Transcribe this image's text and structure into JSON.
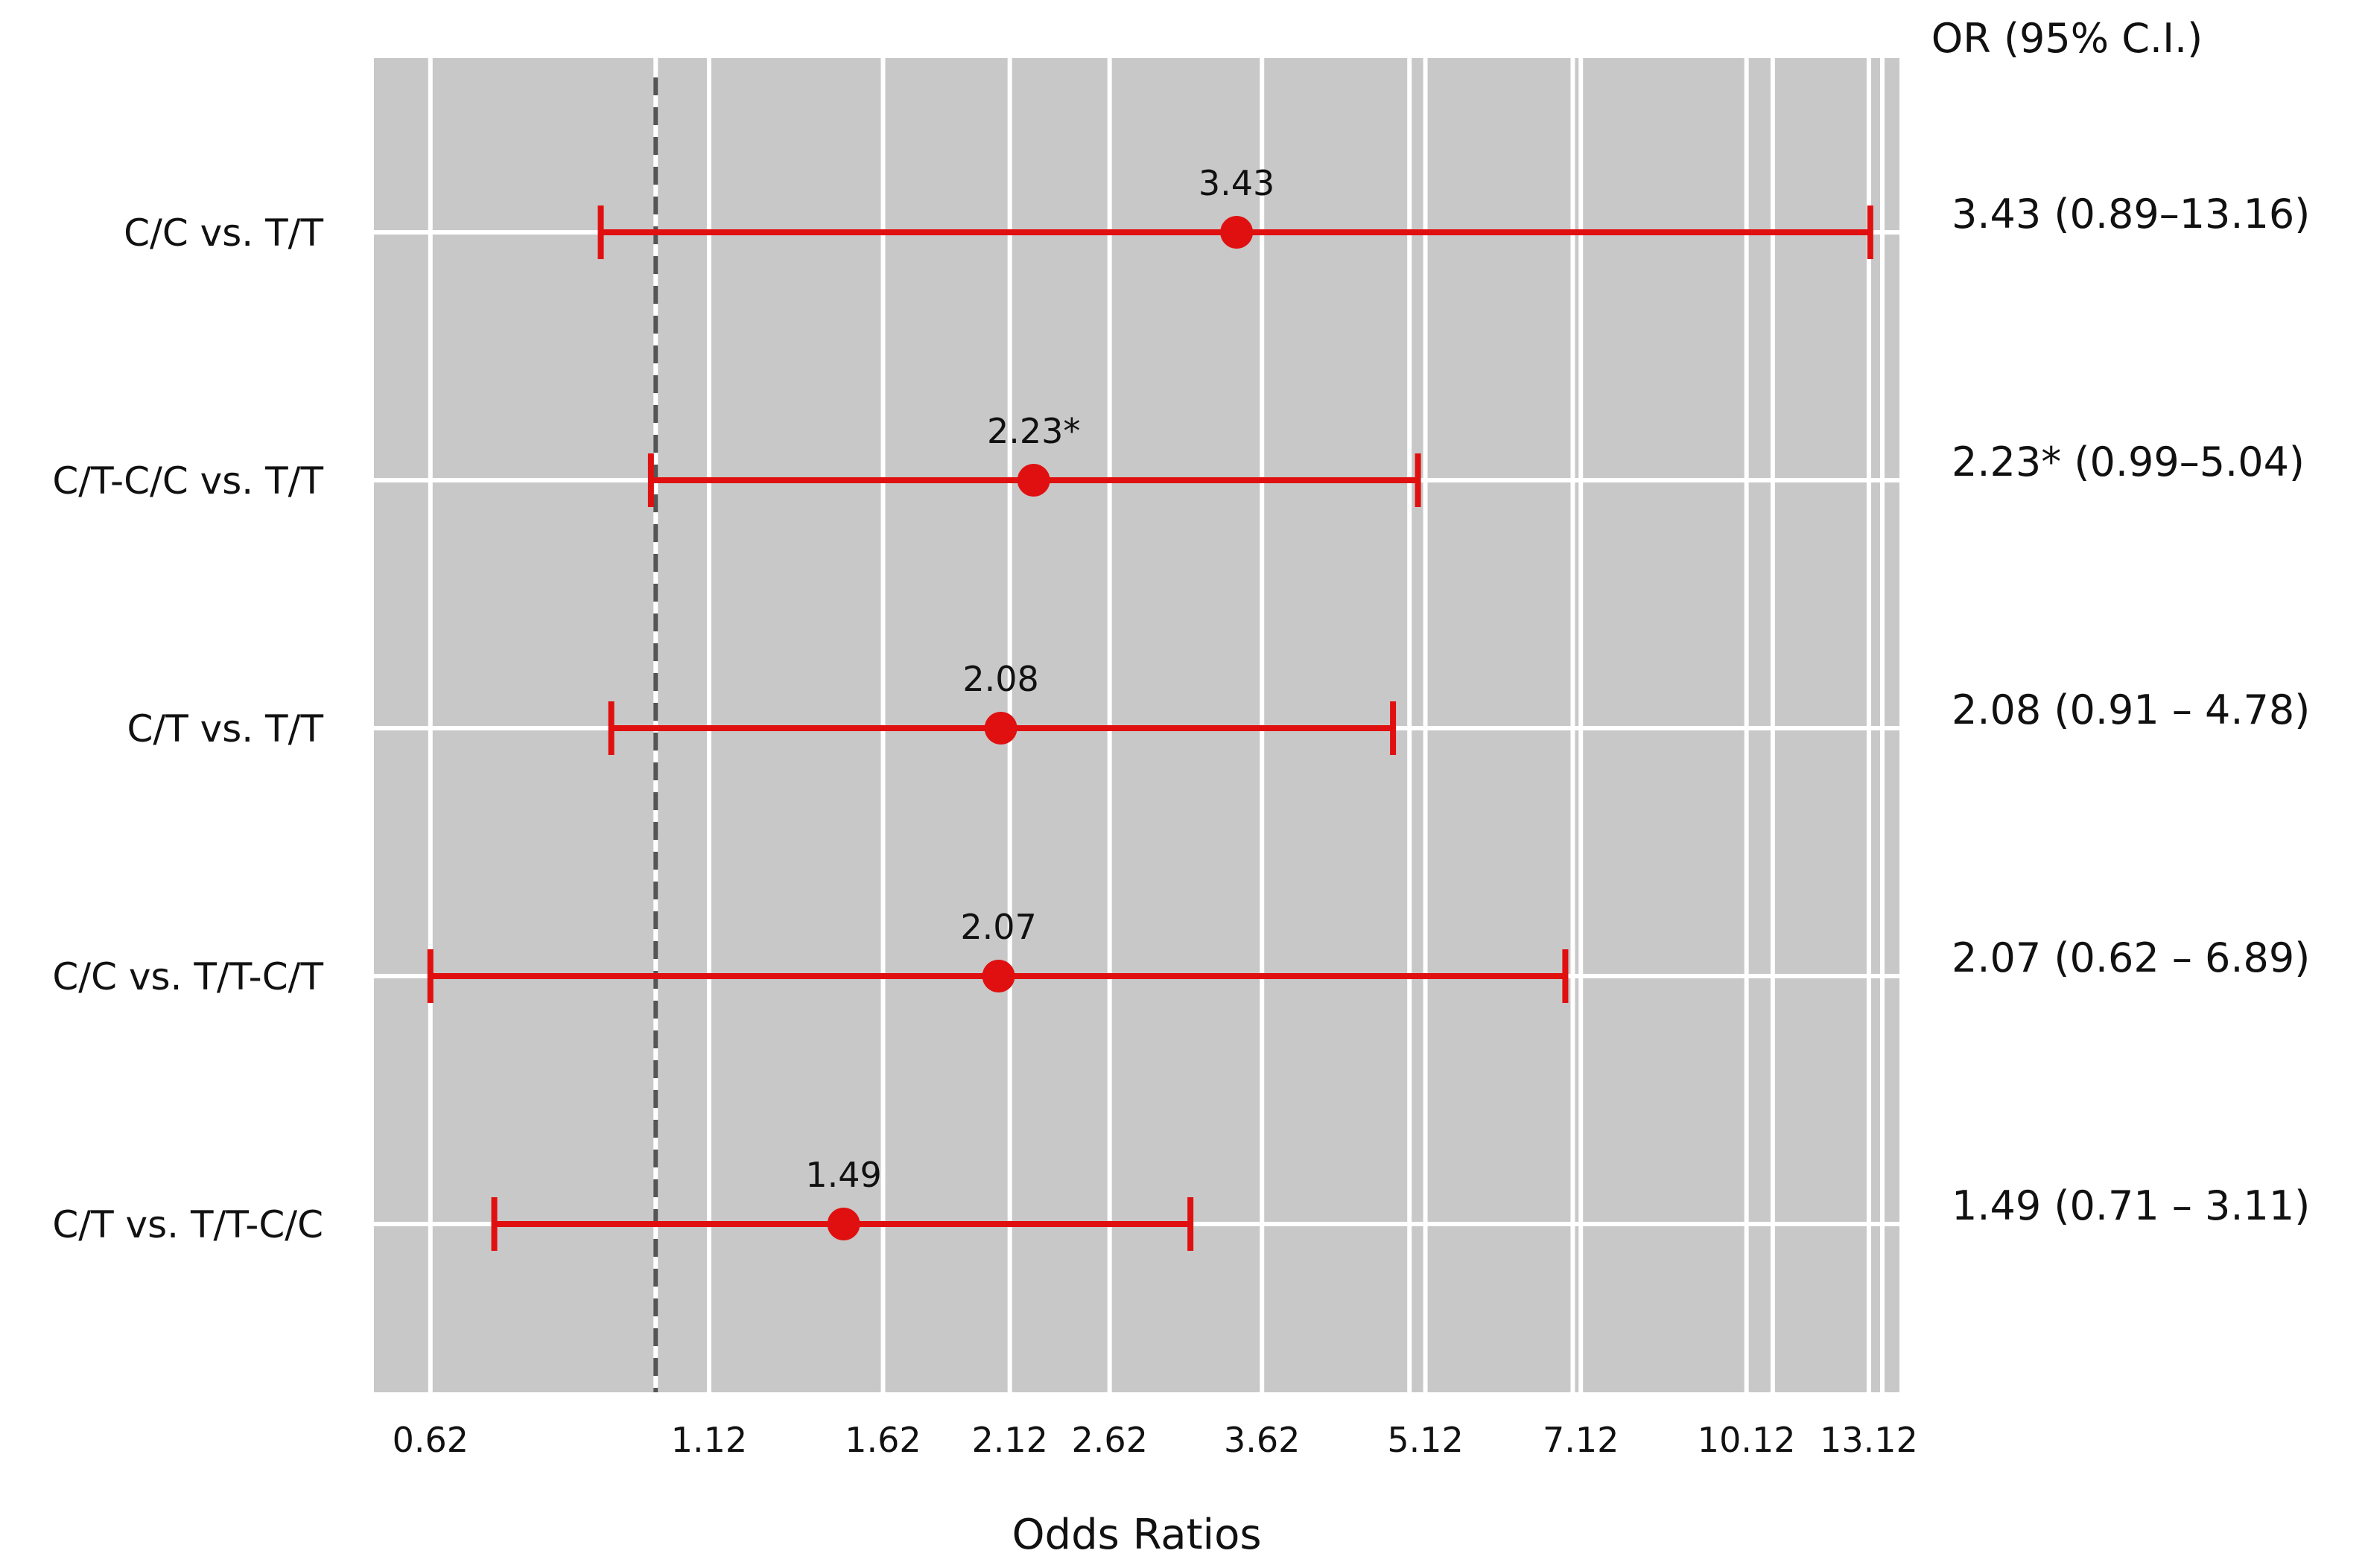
{
  "chart_data": {
    "type": "forest",
    "title": "",
    "xlabel": "Odds Ratios",
    "ylabel": "",
    "x_scale": "log",
    "xlim": [
      0.55,
      14.0
    ],
    "x_ticks": [
      0.62,
      1.12,
      1.62,
      2.12,
      2.62,
      3.62,
      5.12,
      7.12,
      10.12,
      13.12
    ],
    "x_tick_labels": [
      "0.62",
      "1.12",
      "1.62",
      "2.12",
      "2.62",
      "3.62",
      "5.12",
      "7.12",
      "10.12",
      "13.12"
    ],
    "extra_gridlines": [
      1.0,
      4.95,
      7.0,
      10.7,
      13.5
    ],
    "reference_line": 1.0,
    "grid": true,
    "background_color": "#c8c8c8",
    "marker_color": "#e01010",
    "right_column_header": "OR (95% C.I.)",
    "rows": [
      {
        "label": "C/C vs. T/T",
        "or": 3.43,
        "lower": 0.89,
        "upper": 13.16,
        "point_label": "3.43",
        "ci_text": "3.43 (0.89–13.16)"
      },
      {
        "label": "C/T-C/C vs. T/T",
        "or": 2.23,
        "lower": 0.99,
        "upper": 5.04,
        "point_label": "2.23*",
        "ci_text": "2.23* (0.99–5.04)"
      },
      {
        "label": "C/T vs. T/T",
        "or": 2.08,
        "lower": 0.91,
        "upper": 4.78,
        "point_label": "2.08",
        "ci_text": "2.08 (0.91 – 4.78)"
      },
      {
        "label": "C/C vs. T/T-C/T",
        "or": 2.07,
        "lower": 0.62,
        "upper": 6.89,
        "point_label": "2.07",
        "ci_text": "2.07 (0.62 – 6.89)"
      },
      {
        "label": "C/T vs. T/T-C/C",
        "or": 1.49,
        "lower": 0.71,
        "upper": 3.11,
        "point_label": "1.49",
        "ci_text": "1.49 (0.71 – 3.11)"
      }
    ]
  }
}
